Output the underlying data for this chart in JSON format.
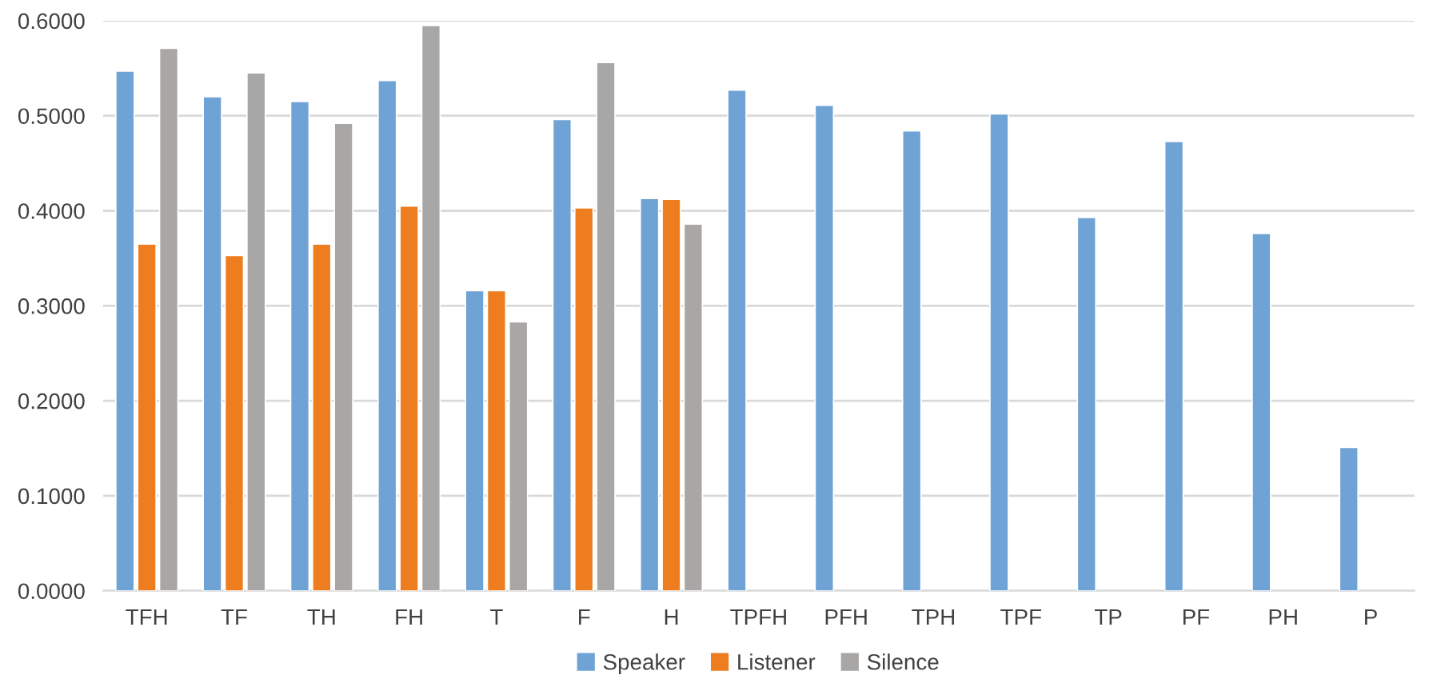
{
  "chart_data": {
    "type": "bar",
    "categories": [
      "TFH",
      "TF",
      "TH",
      "FH",
      "T",
      "F",
      "H",
      "TPFH",
      "PFH",
      "TPH",
      "TPF",
      "TP",
      "PF",
      "PH",
      "P"
    ],
    "series": [
      {
        "name": "Speaker",
        "color": "#70a3d5",
        "values": [
          0.547,
          0.52,
          0.515,
          0.537,
          0.316,
          0.496,
          0.413,
          0.527,
          0.511,
          0.484,
          0.502,
          0.393,
          0.473,
          0.376,
          0.151
        ]
      },
      {
        "name": "Listener",
        "color": "#ed7d1f",
        "values": [
          0.365,
          0.353,
          0.365,
          0.405,
          0.316,
          0.403,
          0.412,
          null,
          null,
          null,
          null,
          null,
          null,
          null,
          null
        ]
      },
      {
        "name": "Silence",
        "color": "#a9a6a6",
        "values": [
          0.571,
          0.545,
          0.492,
          0.595,
          0.283,
          0.556,
          0.386,
          null,
          null,
          null,
          null,
          null,
          null,
          null,
          null
        ]
      }
    ],
    "ylim": [
      0,
      0.6
    ],
    "yticks": [
      {
        "value": 0,
        "label": "0.0000"
      },
      {
        "value": 0.1,
        "label": "0.1000"
      },
      {
        "value": 0.2,
        "label": "0.2000"
      },
      {
        "value": 0.3,
        "label": "0.3000"
      },
      {
        "value": 0.4,
        "label": "0.4000"
      },
      {
        "value": 0.5,
        "label": "0.5000"
      },
      {
        "value": 0.6,
        "label": "0.6000"
      }
    ],
    "grid": "y",
    "legend": "bottom"
  }
}
